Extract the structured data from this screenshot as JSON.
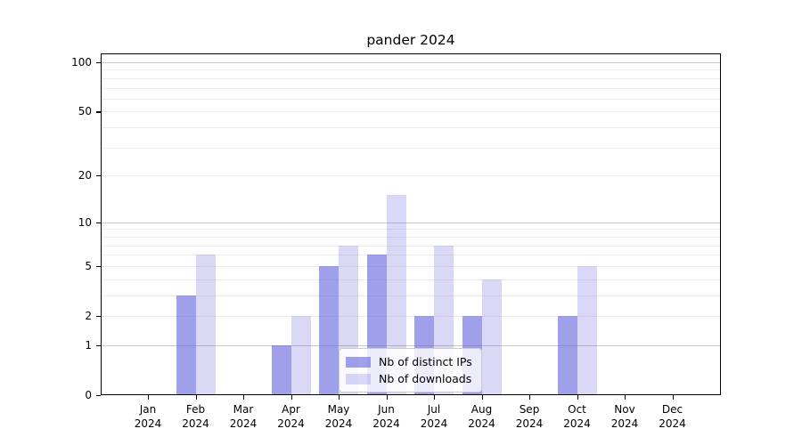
{
  "chart_data": {
    "type": "bar",
    "title": "pander 2024",
    "categories": [
      "Jan",
      "Feb",
      "Mar",
      "Apr",
      "May",
      "Jun",
      "Jul",
      "Aug",
      "Sep",
      "Oct",
      "Nov",
      "Dec"
    ],
    "year": "2024",
    "series": [
      {
        "name": "Nb of distinct IPs",
        "color": "rgba(102,102,221,0.62)",
        "color_hex_on_white": "#a0a0ea",
        "values": [
          0,
          3,
          0,
          1,
          5,
          6,
          2,
          2,
          0,
          2,
          0,
          0
        ]
      },
      {
        "name": "Nb of downloads",
        "color": "rgba(102,102,221,0.25)",
        "color_hex_on_white": "#d8d8f6",
        "values": [
          0,
          6,
          0,
          2,
          7,
          15,
          7,
          4,
          0,
          5,
          0,
          0
        ]
      }
    ],
    "xlabel": "",
    "ylabel": "",
    "yscale": "log1p",
    "ylim": [
      0,
      100
    ],
    "yticks": [
      0,
      1,
      2,
      5,
      10,
      20,
      50,
      100
    ],
    "gridlines": {
      "major": [
        1,
        10,
        100
      ],
      "minor": [
        2,
        3,
        4,
        5,
        6,
        7,
        8,
        9,
        20,
        30,
        40,
        50,
        60,
        70,
        80,
        90
      ]
    },
    "grid": true,
    "legend_position": "lower center"
  },
  "colors": {
    "grid_major": "#c9c9c9",
    "grid_minor": "#ececec",
    "spine": "#000000",
    "legend_border": "#cccccc",
    "background": "#ffffff"
  }
}
